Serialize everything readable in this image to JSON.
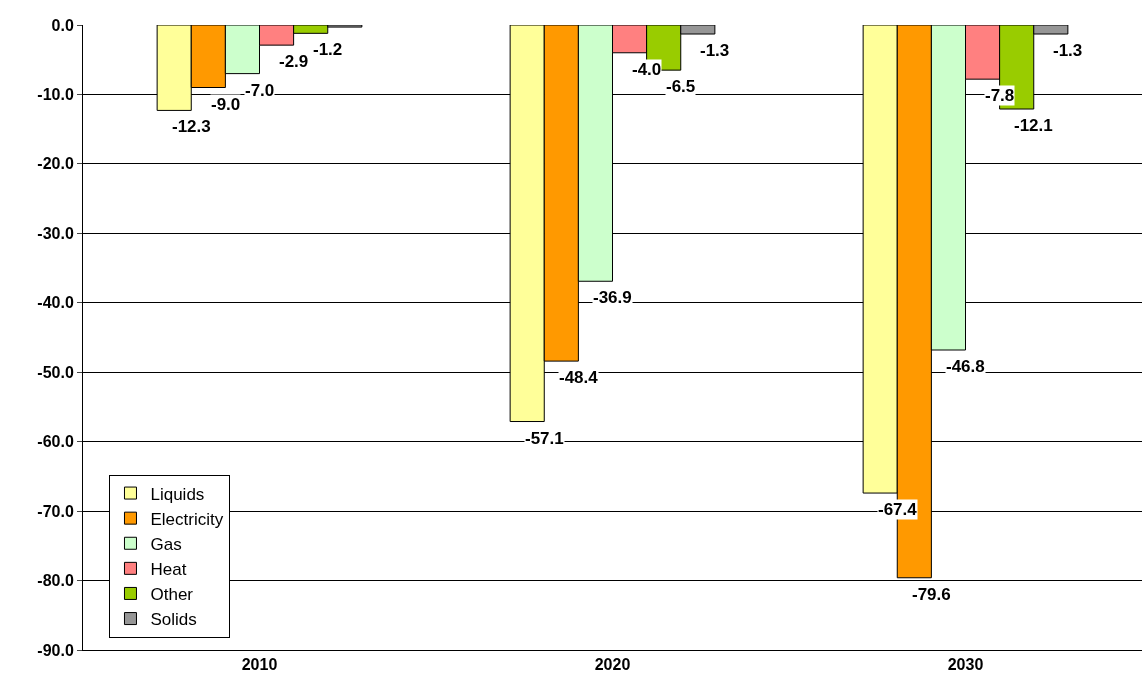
{
  "chart_data": {
    "type": "bar",
    "categories": [
      "2010",
      "2020",
      "2030"
    ],
    "series": [
      {
        "name": "Liquids",
        "color": "#ffff99",
        "values": [
          -12.3,
          -57.1,
          -67.4
        ],
        "value_labels": [
          "-12.3",
          "-57.1",
          "-67.4"
        ]
      },
      {
        "name": "Electricity",
        "color": "#ff9900",
        "values": [
          -9.0,
          -48.4,
          -79.6
        ],
        "value_labels": [
          "-9.0",
          "-48.4",
          "-79.6"
        ]
      },
      {
        "name": "Gas",
        "color": "#ccffcc",
        "values": [
          -7.0,
          -36.9,
          -46.8
        ],
        "value_labels": [
          "-7.0",
          "-36.9",
          "-46.8"
        ]
      },
      {
        "name": "Heat",
        "color": "#ff8080",
        "values": [
          -2.9,
          -4.0,
          -7.8
        ],
        "value_labels": [
          "-2.9",
          "-4.0",
          "-7.8"
        ]
      },
      {
        "name": "Other",
        "color": "#99cc00",
        "values": [
          -1.2,
          -6.5,
          -12.1
        ],
        "value_labels": [
          "-1.2",
          "-6.5",
          "-12.1"
        ]
      },
      {
        "name": "Solids",
        "color": "#969696",
        "values": [
          -0.3,
          -1.3,
          -1.3
        ],
        "value_labels": [
          null,
          "-1.3",
          "-1.3"
        ]
      }
    ],
    "ylim": [
      -90,
      0
    ],
    "yticks": [
      {
        "value": -90,
        "label": "-90.0"
      },
      {
        "value": -80,
        "label": "-80.0"
      },
      {
        "value": -70,
        "label": "-70.0"
      },
      {
        "value": -60,
        "label": "-60.0"
      },
      {
        "value": -50,
        "label": "-50.0"
      },
      {
        "value": -40,
        "label": "-40.0"
      },
      {
        "value": -30,
        "label": "-30.0"
      },
      {
        "value": -20,
        "label": "-20.0"
      },
      {
        "value": -10,
        "label": "-10.0"
      },
      {
        "value": 0,
        "label": "0.0"
      }
    ],
    "grid": "y",
    "legend": "bottom left"
  }
}
